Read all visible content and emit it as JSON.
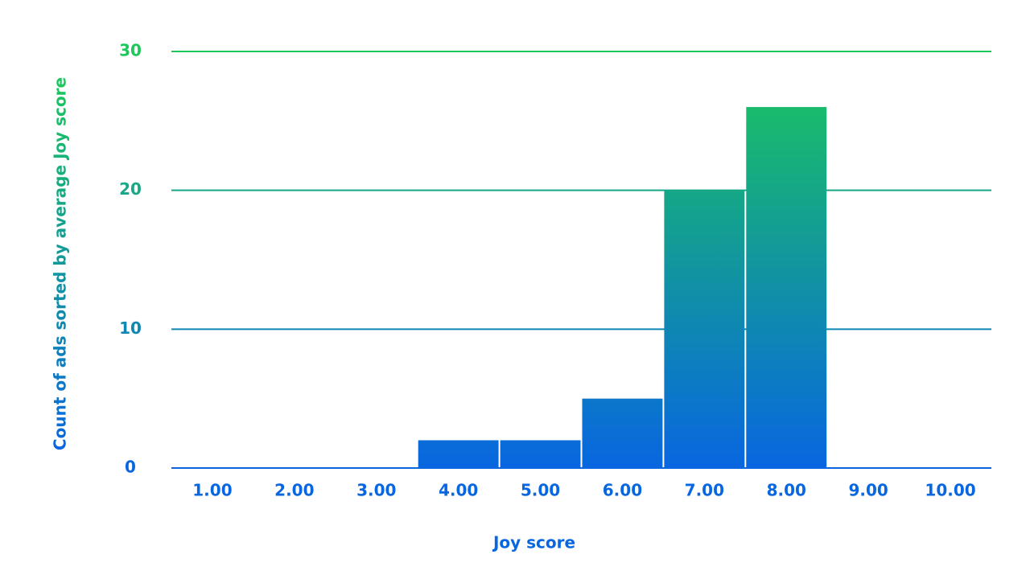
{
  "chart_data": {
    "type": "bar",
    "x_label": "Joy score",
    "y_label": "Count of ads sorted by average Joy score",
    "categories": [
      "1.00",
      "2.00",
      "3.00",
      "4.00",
      "5.00",
      "6.00",
      "7.00",
      "8.00",
      "9.00",
      "10.00"
    ],
    "values": [
      0,
      0,
      0,
      2,
      2,
      5,
      20,
      26,
      0,
      0
    ],
    "gradient_colors": [
      "#0866e0",
      "#1cc85a"
    ],
    "ylim": [
      0,
      30
    ],
    "yticks": [
      0,
      10,
      20,
      30
    ],
    "grid": true
  }
}
